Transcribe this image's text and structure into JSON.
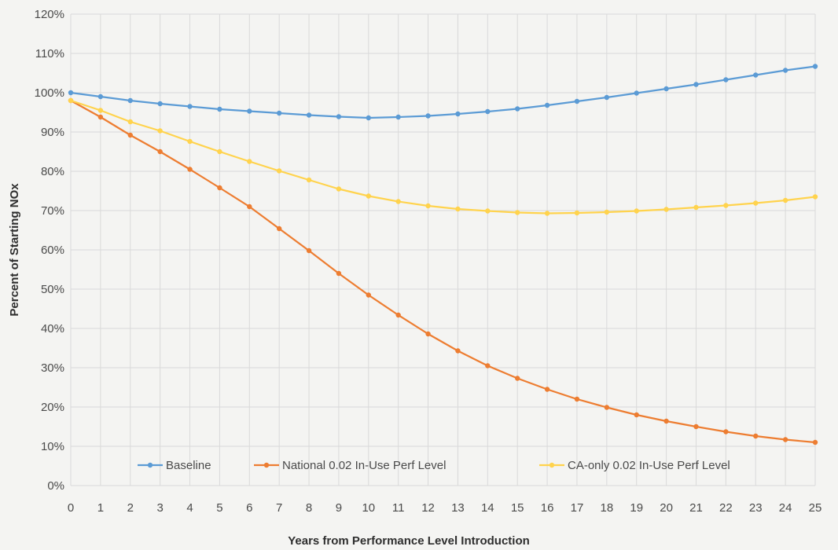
{
  "chart_data": {
    "type": "line",
    "title": "",
    "xlabel": "Years from Performance Level Introduction",
    "ylabel": "Percent of Starting NOx",
    "x": [
      0,
      1,
      2,
      3,
      4,
      5,
      6,
      7,
      8,
      9,
      10,
      11,
      12,
      13,
      14,
      15,
      16,
      17,
      18,
      19,
      20,
      21,
      22,
      23,
      24,
      25
    ],
    "xlim": [
      0,
      25
    ],
    "ylim": [
      0,
      120
    ],
    "y_tick_step": 10,
    "y_tick_suffix": "%",
    "grid": true,
    "legend_position": "bottom-inside",
    "series": [
      {
        "name": "Baseline",
        "color": "#5b9bd5",
        "values": [
          100,
          99,
          98,
          97.2,
          96.5,
          95.8,
          95.3,
          94.8,
          94.3,
          93.9,
          93.6,
          93.8,
          94.1,
          94.6,
          95.2,
          95.9,
          96.8,
          97.8,
          98.8,
          99.9,
          101.0,
          102.1,
          103.3,
          104.5,
          105.7,
          106.7
        ]
      },
      {
        "name": "National 0.02 In-Use Perf Level",
        "color": "#ed7d31",
        "values": [
          98,
          93.8,
          89.2,
          85.0,
          80.5,
          75.8,
          71.0,
          65.4,
          59.8,
          54.0,
          48.5,
          43.4,
          38.6,
          34.3,
          30.5,
          27.3,
          24.5,
          22.0,
          19.9,
          18.0,
          16.4,
          15.0,
          13.7,
          12.6,
          11.7,
          11.0
        ]
      },
      {
        "name": "CA-only 0.02 In-Use Perf Level",
        "color": "#ffd34d",
        "values": [
          98,
          95.5,
          92.6,
          90.3,
          87.6,
          85.0,
          82.5,
          80.1,
          77.8,
          75.5,
          73.7,
          72.3,
          71.2,
          70.4,
          69.9,
          69.5,
          69.3,
          69.4,
          69.6,
          69.9,
          70.3,
          70.8,
          71.3,
          71.9,
          72.6,
          73.5
        ]
      }
    ]
  }
}
